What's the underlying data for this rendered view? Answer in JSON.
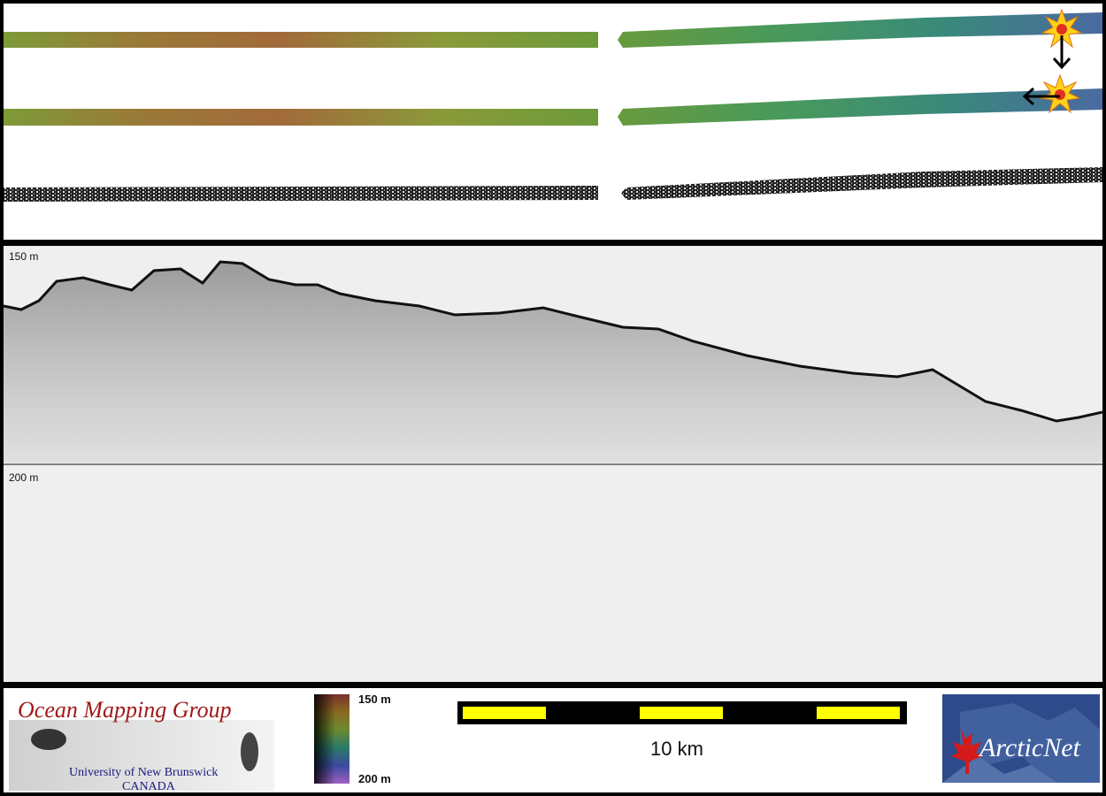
{
  "echogram": {
    "top_depth_label": "150 m",
    "mid_depth_label": "200 m"
  },
  "footer": {
    "org_title": "Ocean Mapping Group",
    "org_line1": "University of New Brunswick",
    "org_line2": "CANADA",
    "colorbar_top_label": "150 m",
    "colorbar_bottom_label": "200 m",
    "scalebar_label": "10 km",
    "partner_logo_text": "ArcticNet"
  },
  "colors": {
    "scalebar_yellow": "#ffff00",
    "scalebar_black": "#000000",
    "omg_title_color": "#a01818",
    "omg_subtitle_color": "#1a1a80",
    "arcticnet_bg": "#2e4a8a",
    "arcticnet_leaf": "#d41a1a"
  },
  "icons": {
    "start_marker": "star-burst-icon",
    "direction_down": "arrow-down-icon",
    "direction_left": "arrow-left-icon"
  }
}
